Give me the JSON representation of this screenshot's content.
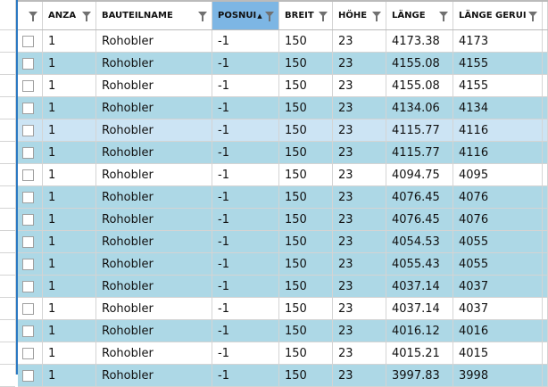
{
  "columns": [
    {
      "label": "",
      "filter": true
    },
    {
      "label": "ANZA",
      "filter": true
    },
    {
      "label": "BAUTEILNAME",
      "filter": true
    },
    {
      "label": "POSNUI",
      "filter": true,
      "sorted": "ascending"
    },
    {
      "label": "BREIT",
      "filter": true
    },
    {
      "label": "HÖHE",
      "filter": true
    },
    {
      "label": "LÄNGE",
      "filter": true
    },
    {
      "label": "LÄNGE GERUI",
      "filter": true
    }
  ],
  "sort_icon": "▲",
  "colors": {
    "alt_row": "#add8e6",
    "selected_row": "#cce4f4",
    "sorted_header": "#7db6e4",
    "white_row": "#ffffff"
  },
  "rows": [
    {
      "style": "white",
      "cells": [
        "1",
        "Rohobler",
        "-1",
        "150",
        "23",
        "4173.38",
        "4173"
      ]
    },
    {
      "style": "alt",
      "cells": [
        "1",
        "Rohobler",
        "-1",
        "150",
        "23",
        "4155.08",
        "4155"
      ]
    },
    {
      "style": "white",
      "cells": [
        "1",
        "Rohobler",
        "-1",
        "150",
        "23",
        "4155.08",
        "4155"
      ]
    },
    {
      "style": "alt",
      "cells": [
        "1",
        "Rohobler",
        "-1",
        "150",
        "23",
        "4134.06",
        "4134"
      ]
    },
    {
      "style": "sel",
      "cells": [
        "1",
        "Rohobler",
        "-1",
        "150",
        "23",
        "4115.77",
        "4116"
      ]
    },
    {
      "style": "alt",
      "cells": [
        "1",
        "Rohobler",
        "-1",
        "150",
        "23",
        "4115.77",
        "4116"
      ]
    },
    {
      "style": "white",
      "cells": [
        "1",
        "Rohobler",
        "-1",
        "150",
        "23",
        "4094.75",
        "4095"
      ]
    },
    {
      "style": "alt",
      "cells": [
        "1",
        "Rohobler",
        "-1",
        "150",
        "23",
        "4076.45",
        "4076"
      ]
    },
    {
      "style": "alt",
      "cells": [
        "1",
        "Rohobler",
        "-1",
        "150",
        "23",
        "4076.45",
        "4076"
      ]
    },
    {
      "style": "alt",
      "cells": [
        "1",
        "Rohobler",
        "-1",
        "150",
        "23",
        "4054.53",
        "4055"
      ]
    },
    {
      "style": "alt",
      "cells": [
        "1",
        "Rohobler",
        "-1",
        "150",
        "23",
        "4055.43",
        "4055"
      ]
    },
    {
      "style": "alt",
      "cells": [
        "1",
        "Rohobler",
        "-1",
        "150",
        "23",
        "4037.14",
        "4037"
      ]
    },
    {
      "style": "white",
      "cells": [
        "1",
        "Rohobler",
        "-1",
        "150",
        "23",
        "4037.14",
        "4037"
      ]
    },
    {
      "style": "alt",
      "cells": [
        "1",
        "Rohobler",
        "-1",
        "150",
        "23",
        "4016.12",
        "4016"
      ]
    },
    {
      "style": "white",
      "cells": [
        "1",
        "Rohobler",
        "-1",
        "150",
        "23",
        "4015.21",
        "4015"
      ]
    },
    {
      "style": "alt",
      "cells": [
        "1",
        "Rohobler",
        "-1",
        "150",
        "23",
        "3997.83",
        "3998"
      ]
    }
  ]
}
